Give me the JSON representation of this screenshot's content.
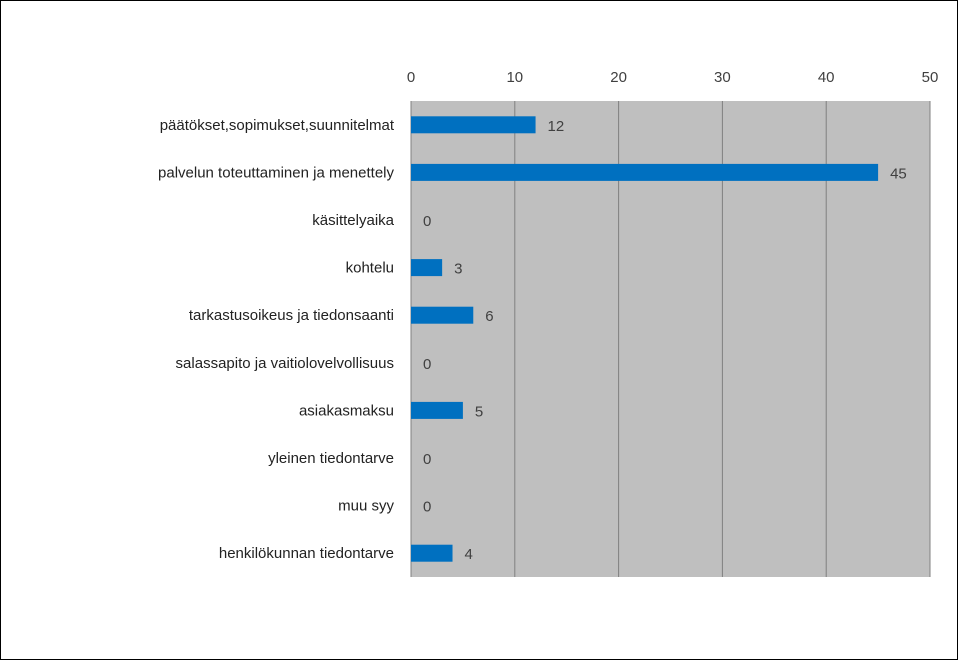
{
  "chart_data": {
    "type": "bar",
    "orientation": "horizontal",
    "title": "",
    "xlabel": "",
    "ylabel": "",
    "categories": [
      "päätökset,sopimukset,suunnitelmat",
      "palvelun toteuttaminen ja menettely",
      "käsittelyaika",
      "kohtelu",
      "tarkastusoikeus ja tiedonsaanti",
      "salassapito ja vaitiolovelvollisuus",
      "asiakasmaksu",
      "yleinen tiedontarve",
      "muu syy",
      "henkilökunnan tiedontarve"
    ],
    "values": [
      12,
      45,
      0,
      3,
      6,
      0,
      5,
      0,
      0,
      4
    ],
    "xlim": [
      0,
      50
    ],
    "ticks": [
      "0",
      "10",
      "20",
      "30",
      "40",
      "50"
    ],
    "axis_position": "top",
    "grid": true,
    "data_labels": true,
    "legend": "none",
    "colors": {
      "bar": "#0070c0",
      "plot_background": "#bfbfbf",
      "gridline": "#808080"
    }
  }
}
